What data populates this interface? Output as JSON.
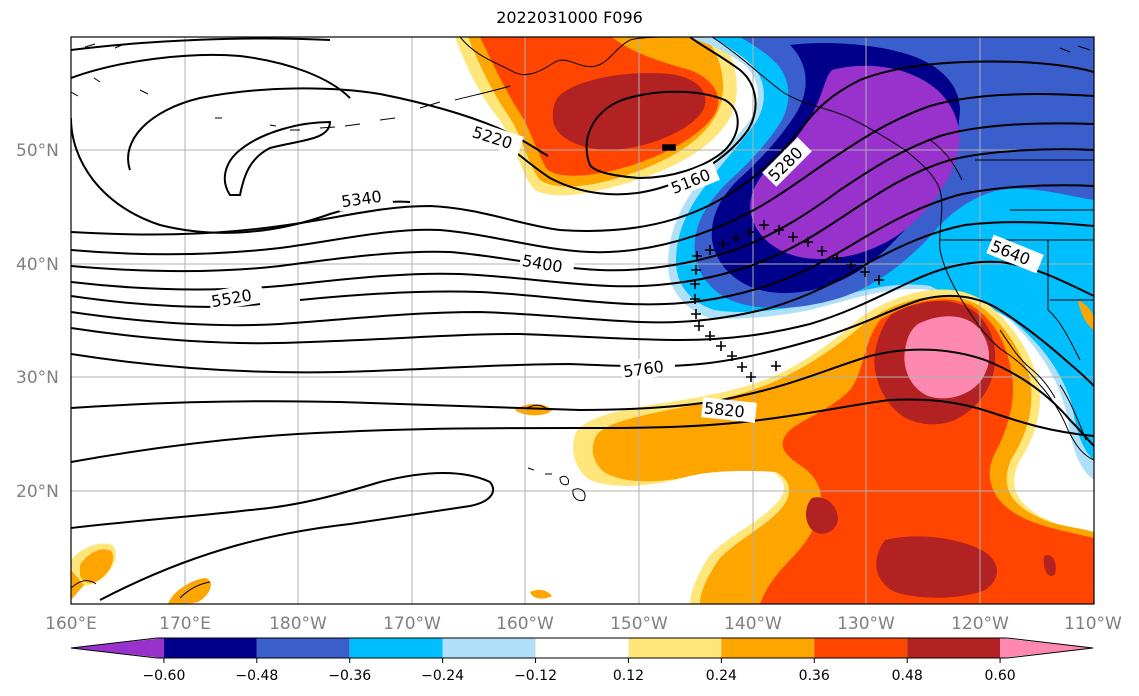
{
  "title": "2022031000 F096",
  "map": {
    "projection": "PlateCarree",
    "lon_range": [
      160,
      250
    ],
    "lat_range": [
      10,
      60
    ],
    "gridlines": true,
    "coastlines": true
  },
  "lon_ticks": [
    "160°E",
    "170°E",
    "180°W",
    "170°W",
    "160°W",
    "150°W",
    "140°W",
    "130°W",
    "120°W",
    "110°W"
  ],
  "lat_ticks": [
    "50°N",
    "40°N",
    "30°N",
    "20°N"
  ],
  "contour_labels": [
    "5220",
    "5160",
    "5280",
    "5340",
    "5400",
    "5520",
    "5640",
    "5760",
    "5820"
  ],
  "colorbar": {
    "ticks": [
      "−0.60",
      "−0.48",
      "−0.36",
      "−0.24",
      "−0.12",
      "0.12",
      "0.24",
      "0.36",
      "0.48",
      "0.60"
    ],
    "colors": [
      "#9932cc",
      "#00008b",
      "#3a5fcd",
      "#00bfff",
      "#b0e0f8",
      "#ffffff",
      "#ffe67a",
      "#ffa500",
      "#ff4500",
      "#b22222",
      "#ff88b0"
    ],
    "extend": "both"
  }
}
